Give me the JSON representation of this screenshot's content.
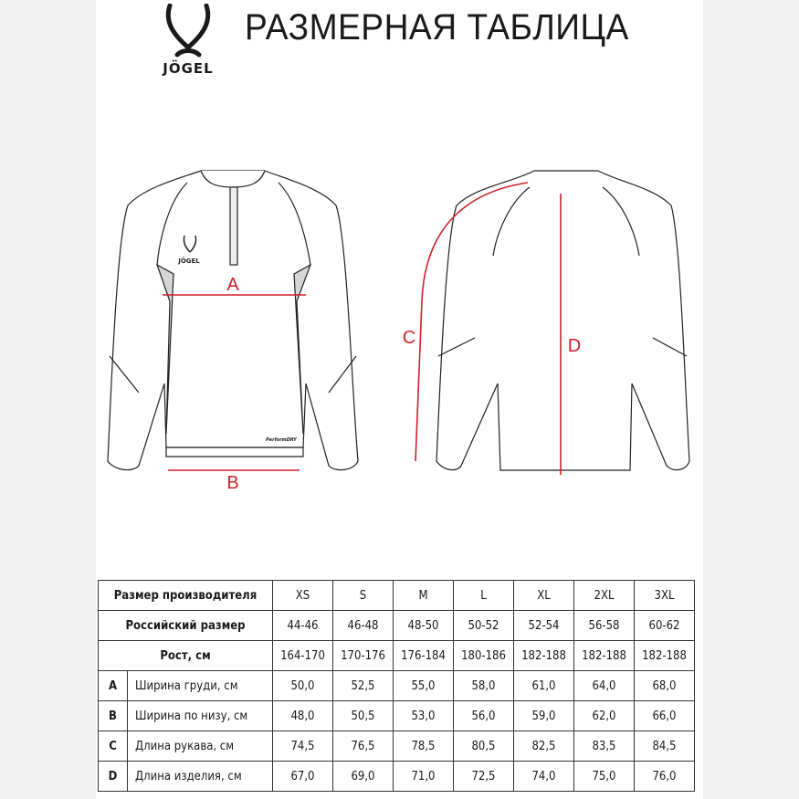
{
  "brand": "JÖGEL",
  "title": "РАЗМЕРНАЯ ТАБЛИЦА",
  "drawing": {
    "labels": {
      "a": "A",
      "b": "B",
      "c": "C",
      "d": "D"
    },
    "chest_logo": "JÖGEL",
    "hem_label": "PerformDRY",
    "measure_color": "#d0202a"
  },
  "table": {
    "sizes_header": "Размер производителя",
    "sizes": [
      "XS",
      "S",
      "M",
      "L",
      "XL",
      "2XL",
      "3XL"
    ],
    "ru_header": "Российский размер",
    "ru_sizes": [
      "44-46",
      "46-48",
      "48-50",
      "50-52",
      "52-54",
      "56-58",
      "60-62"
    ],
    "height_header": "Рост, см",
    "heights": [
      "164-170",
      "170-176",
      "176-184",
      "180-186",
      "182-188",
      "182-188",
      "182-188"
    ],
    "measurements": [
      {
        "letter": "A",
        "name": "Ширина груди, см",
        "values": [
          "50,0",
          "52,5",
          "55,0",
          "58,0",
          "61,0",
          "64,0",
          "68,0"
        ]
      },
      {
        "letter": "B",
        "name": "Ширина по низу, см",
        "values": [
          "48,0",
          "50,5",
          "53,0",
          "56,0",
          "59,0",
          "62,0",
          "66,0"
        ]
      },
      {
        "letter": "C",
        "name": "Длина рукава, см",
        "values": [
          "74,5",
          "76,5",
          "78,5",
          "80,5",
          "82,5",
          "83,5",
          "84,5"
        ]
      },
      {
        "letter": "D",
        "name": "Длина изделия, см",
        "values": [
          "67,0",
          "69,0",
          "71,0",
          "72,5",
          "74,0",
          "75,0",
          "76,0"
        ]
      }
    ]
  }
}
